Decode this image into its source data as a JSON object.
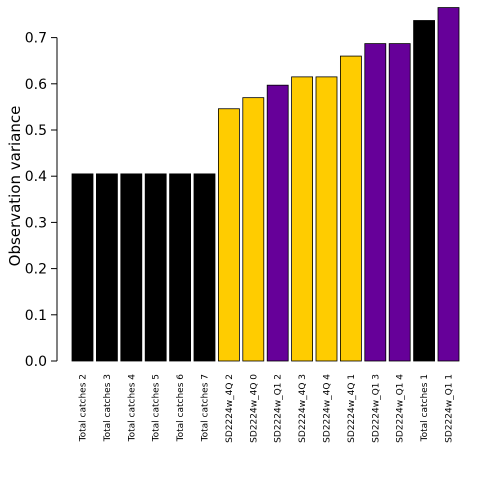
{
  "chart_data": {
    "type": "bar",
    "title": "",
    "xlabel": "",
    "ylabel": "Observation variance",
    "ylim": [
      0,
      0.77
    ],
    "yticks": [
      "0.0",
      "0.1",
      "0.2",
      "0.3",
      "0.4",
      "0.5",
      "0.6",
      "0.7"
    ],
    "grid": false,
    "legend": "none",
    "colors": {
      "total_catches": "#000000",
      "SD2224w_4Q": "#FFCC00",
      "SD2224w_Q1": "#660099"
    },
    "categories": [
      "Total catches 2",
      "Total catches 3",
      "Total catches 4",
      "Total catches 5",
      "Total catches 6",
      "Total catches 7",
      "SD2224w_4Q 2",
      "SD2224w_4Q 0",
      "SD2224w_Q1 2",
      "SD2224w_4Q 3",
      "SD2224w_4Q 4",
      "SD2224w_4Q 1",
      "SD2224w_Q1 3",
      "SD2224w_Q1 4",
      "Total catches 1",
      "SD2224w_Q1 1"
    ],
    "values": [
      0.405,
      0.405,
      0.405,
      0.405,
      0.405,
      0.405,
      0.546,
      0.57,
      0.597,
      0.615,
      0.615,
      0.66,
      0.687,
      0.687,
      0.737,
      0.765
    ],
    "bar_colors": [
      "#000000",
      "#000000",
      "#000000",
      "#000000",
      "#000000",
      "#000000",
      "#FFCC00",
      "#FFCC00",
      "#660099",
      "#FFCC00",
      "#FFCC00",
      "#FFCC00",
      "#660099",
      "#660099",
      "#000000",
      "#660099"
    ]
  }
}
